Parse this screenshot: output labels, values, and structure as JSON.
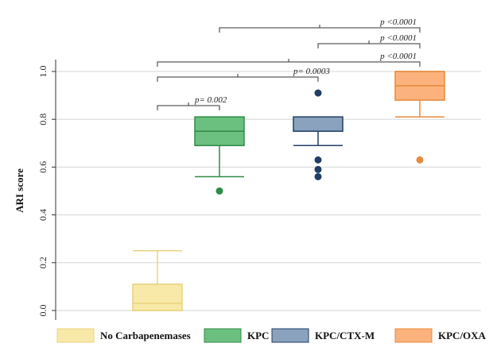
{
  "chart_data": {
    "type": "box",
    "ylabel": "ARI score",
    "xlabel": "",
    "ylim": [
      -0.03,
      1.08
    ],
    "yticks": [
      0.0,
      0.2,
      0.4,
      0.6,
      0.8,
      1.0
    ],
    "ytick_labels": [
      "0.0",
      "0.2",
      "0.4",
      "0.6",
      "0.8",
      "1.0"
    ],
    "grid": true,
    "legend_position": "bottom",
    "groups": [
      {
        "name": "No Carbapenemases",
        "color": "#f8e9a8",
        "edge": "#e8d27c",
        "min": 0.0,
        "q1": 0.0,
        "median": 0.03,
        "q3": 0.11,
        "max": 0.25,
        "outliers": []
      },
      {
        "name": "KPC",
        "color": "#6cc07f",
        "edge": "#2f8b46",
        "min": 0.56,
        "q1": 0.69,
        "median": 0.75,
        "q3": 0.81,
        "max": 0.81,
        "outliers": [
          0.5
        ]
      },
      {
        "name": "KPC/CTX-M",
        "color": "#8aa2bd",
        "edge": "#1f3f66",
        "min": 0.69,
        "q1": 0.75,
        "median": 0.75,
        "q3": 0.81,
        "max": 0.81,
        "outliers": [
          0.91,
          0.63,
          0.59,
          0.56
        ]
      },
      {
        "name": "KPC/OXA",
        "color": "#fbb27c",
        "edge": "#e8893c",
        "min": 0.81,
        "q1": 0.88,
        "median": 0.94,
        "q3": 1.0,
        "max": 1.0,
        "outliers": [
          0.63
        ]
      }
    ],
    "comparisons": [
      {
        "from": 0,
        "to": 1,
        "label": "p= 0.002"
      },
      {
        "from": 0,
        "to": 2,
        "label": "p= 0.0003"
      },
      {
        "from": 0,
        "to": 3,
        "label": "p <0.0001"
      },
      {
        "from": 2,
        "to": 3,
        "label": "p <0.0001"
      },
      {
        "from": 1,
        "to": 3,
        "label": "p <0.0001"
      }
    ]
  }
}
